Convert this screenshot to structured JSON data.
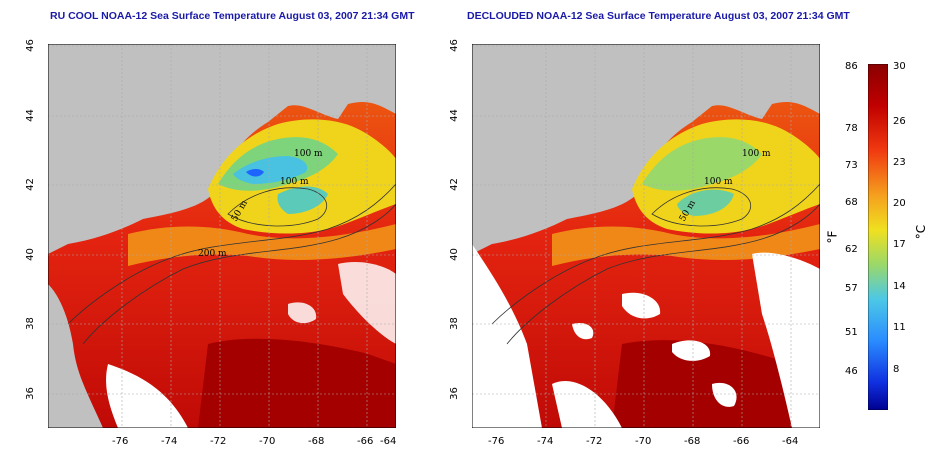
{
  "titles": {
    "left": "RU COOL NOAA-12 Sea Surface Temperature August 03, 2007 21:34 GMT",
    "right": "DECLOUDED NOAA-12 Sea Surface Temperature August 03, 2007 21:34 GMT"
  },
  "axes": {
    "lat_ticks": [
      "46",
      "44",
      "42",
      "40",
      "38",
      "36"
    ],
    "lon_ticks": [
      "-76",
      "-74",
      "-72",
      "-70",
      "-68",
      "-66",
      "-64"
    ]
  },
  "depth_labels": [
    "100 m",
    "100 m",
    "50 m",
    "200 m"
  ],
  "colorbar": {
    "fahrenheit_ticks": [
      "86",
      "78",
      "73",
      "68",
      "62",
      "57",
      "51",
      "46"
    ],
    "celsius_ticks": [
      "30",
      "26",
      "23",
      "20",
      "17",
      "14",
      "11",
      "8"
    ],
    "fahrenheit_unit": "°F",
    "celsius_unit": "°C"
  },
  "colors": {
    "title": "#1a1aa8",
    "land": "#c0c0c0",
    "cloud": "#ffffff",
    "warm": "#e01c0c",
    "hot": "#b00000",
    "mid": "#f5d21e",
    "cool": "#4cc8e6",
    "cold": "#1e64ff"
  }
}
